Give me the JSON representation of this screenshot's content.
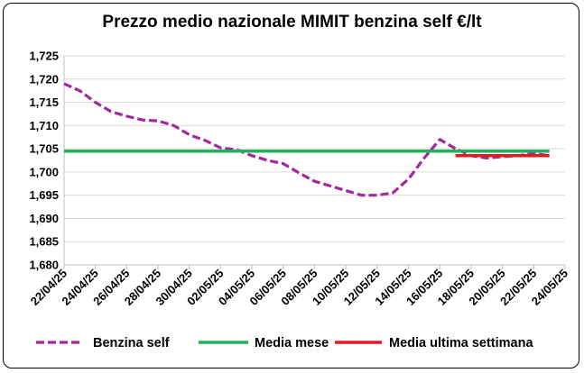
{
  "chart_data": {
    "type": "line",
    "title": "Prezzo medio nazionale MIMIT benzina self €/lt",
    "xlabel": "",
    "ylabel": "",
    "x_ticks": [
      "22/04/25",
      "24/04/25",
      "26/04/25",
      "28/04/25",
      "30/04/25",
      "02/05/25",
      "04/05/25",
      "06/05/25",
      "08/05/25",
      "10/05/25",
      "12/05/25",
      "14/05/25",
      "16/05/25",
      "18/05/25",
      "20/05/25",
      "22/05/25",
      "24/05/25"
    ],
    "y_ticks": [
      "1,680",
      "1,685",
      "1,690",
      "1,695",
      "1,700",
      "1,705",
      "1,710",
      "1,715",
      "1,720",
      "1,725"
    ],
    "ylim": [
      1.68,
      1.725
    ],
    "x_start": "22/04/25",
    "x_end": "24/05/25",
    "grid": "horizontal",
    "legend_position": "bottom",
    "series": [
      {
        "name": "Benzina self",
        "style": "dashed",
        "color": "#a3289c",
        "points": [
          [
            "22/04/25",
            1.719
          ],
          [
            "23/04/25",
            1.7175
          ],
          [
            "24/04/25",
            1.715
          ],
          [
            "25/04/25",
            1.713
          ],
          [
            "26/04/25",
            1.712
          ],
          [
            "27/04/25",
            1.7112
          ],
          [
            "28/04/25",
            1.711
          ],
          [
            "29/04/25",
            1.71
          ],
          [
            "30/04/25",
            1.708
          ],
          [
            "01/05/25",
            1.7068
          ],
          [
            "02/05/25",
            1.7052
          ],
          [
            "03/05/25",
            1.7048
          ],
          [
            "04/05/25",
            1.7035
          ],
          [
            "05/05/25",
            1.7025
          ],
          [
            "06/05/25",
            1.7018
          ],
          [
            "07/05/25",
            1.6998
          ],
          [
            "08/05/25",
            1.698
          ],
          [
            "09/05/25",
            1.697
          ],
          [
            "10/05/25",
            1.696
          ],
          [
            "11/05/25",
            1.695
          ],
          [
            "12/05/25",
            1.695
          ],
          [
            "13/05/25",
            1.6955
          ],
          [
            "14/05/25",
            1.6985
          ],
          [
            "15/05/25",
            1.703
          ],
          [
            "16/05/25",
            1.707
          ],
          [
            "17/05/25",
            1.705
          ],
          [
            "18/05/25",
            1.7035
          ],
          [
            "19/05/25",
            1.703
          ],
          [
            "20/05/25",
            1.7033
          ],
          [
            "21/05/25",
            1.7035
          ],
          [
            "22/05/25",
            1.704
          ],
          [
            "23/05/25",
            1.7035
          ]
        ]
      },
      {
        "name": "Media mese",
        "style": "solid",
        "color": "#22b05a",
        "points": [
          [
            "22/04/25",
            1.7045
          ],
          [
            "23/05/25",
            1.7045
          ]
        ]
      },
      {
        "name": "Media ultima settimana",
        "style": "solid",
        "color": "#e01b24",
        "points": [
          [
            "17/05/25",
            1.7035
          ],
          [
            "23/05/25",
            1.7035
          ]
        ]
      }
    ]
  }
}
